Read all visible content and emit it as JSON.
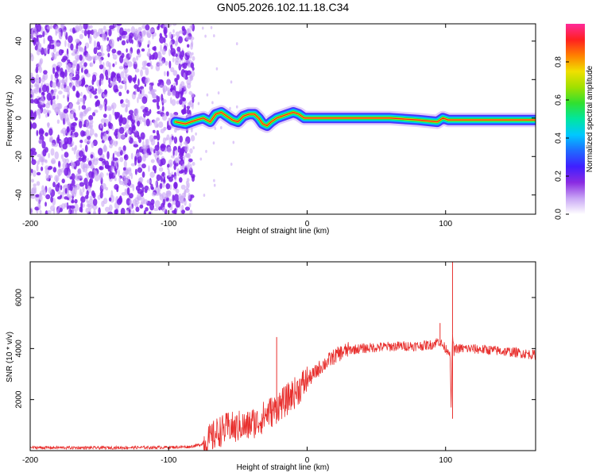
{
  "title": "GN05.2026.102.11.18.C34",
  "colors": {
    "snr_line": "#e8302e",
    "scatter": "#7a1fe6",
    "scatter_light": "#c9a6f5",
    "colormap": [
      "#ffffff",
      "#c9a6f5",
      "#8a2be2",
      "#3f1fff",
      "#1f6bff",
      "#00c8ff",
      "#00e6a0",
      "#30e030",
      "#a0e000",
      "#f0e000",
      "#ff8000",
      "#ff2020",
      "#ff2a9a"
    ]
  },
  "chart_data": [
    {
      "type": "heatmap",
      "title": "GN05.2026.102.11.18.C34",
      "xlabel": "Height of straight line (km)",
      "ylabel": "Frequency (Hz)",
      "xlim": [
        -200,
        165
      ],
      "ylim": [
        -50,
        49
      ],
      "xticks": [
        -200,
        -100,
        0,
        100
      ],
      "xticklabels": [
        "-200",
        "-100",
        "0",
        "100"
      ],
      "yticks": [
        -40,
        -20,
        0,
        20,
        40
      ],
      "yticklabels": [
        "-40",
        "-20",
        "0",
        "20",
        "40"
      ],
      "ridge": {
        "description": "Dominant frequency ridge (normalized amplitude ~1 near 0 Hz)",
        "x": [
          -95,
          -88,
          -80,
          -75,
          -70,
          -66,
          -62,
          -58,
          -54,
          -50,
          -46,
          -42,
          -38,
          -35,
          -32,
          -29,
          -26,
          -22,
          -18,
          -14,
          -10,
          -6,
          -2,
          2,
          10,
          20,
          40,
          60,
          80,
          94,
          98,
          102,
          110,
          130,
          150,
          165
        ],
        "y": [
          -2,
          -3,
          -1,
          0,
          -2,
          2,
          3,
          1,
          -1,
          -2,
          1,
          2,
          2,
          0,
          -3,
          -4,
          -2,
          0,
          1,
          2,
          3,
          2,
          0,
          0,
          0,
          0,
          0,
          0,
          -1,
          -2,
          0,
          -1,
          -1,
          -1,
          -1,
          -1
        ]
      },
      "colorbar": {
        "label": "Normalized spectral amplitude",
        "range": [
          0,
          1
        ],
        "ticks": [
          0,
          0.2,
          0.4,
          0.6,
          0.8
        ],
        "ticklabels": [
          "0.0",
          "0.2",
          "0.4",
          "0.6",
          "0.8"
        ]
      }
    },
    {
      "type": "line",
      "xlabel": "Height of straight line (km)",
      "ylabel": "SNR (10 * v/v)",
      "xlim": [
        -200,
        165
      ],
      "ylim": [
        0,
        7400
      ],
      "xticks": [
        -200,
        -100,
        0,
        100
      ],
      "xticklabels": [
        "-200",
        "-100",
        "0",
        "100"
      ],
      "yticks": [
        2000,
        4000,
        6000
      ],
      "yticklabels": [
        "2000",
        "4000",
        "6000"
      ],
      "series": [
        {
          "name": "SNR",
          "x": [
            -200,
            -150,
            -100,
            -85,
            -78,
            -72,
            -68,
            -64,
            -60,
            -56,
            -52,
            -48,
            -44,
            -40,
            -36,
            -32,
            -28,
            -24,
            -20,
            -16,
            -12,
            -8,
            -4,
            0,
            5,
            10,
            15,
            20,
            25,
            30,
            40,
            50,
            60,
            70,
            80,
            90,
            95,
            100,
            103,
            104,
            105,
            106,
            108,
            115,
            130,
            150,
            165
          ],
          "y": [
            120,
            110,
            130,
            150,
            220,
            350,
            550,
            750,
            800,
            950,
            850,
            1000,
            900,
            1100,
            1100,
            1300,
            1500,
            1550,
            1800,
            1900,
            2150,
            2300,
            2550,
            2750,
            3000,
            3300,
            3500,
            3700,
            3850,
            3950,
            4000,
            4050,
            4080,
            4100,
            4100,
            4150,
            4300,
            4000,
            3900,
            1800,
            4600,
            3900,
            4000,
            4000,
            3950,
            3850,
            3750
          ]
        }
      ],
      "spikes": [
        {
          "x": -22,
          "y": 4450
        },
        {
          "x": 105,
          "y": 7400
        },
        {
          "x": 105,
          "y": 1250
        },
        {
          "x": 96,
          "y": 5000
        }
      ]
    }
  ]
}
